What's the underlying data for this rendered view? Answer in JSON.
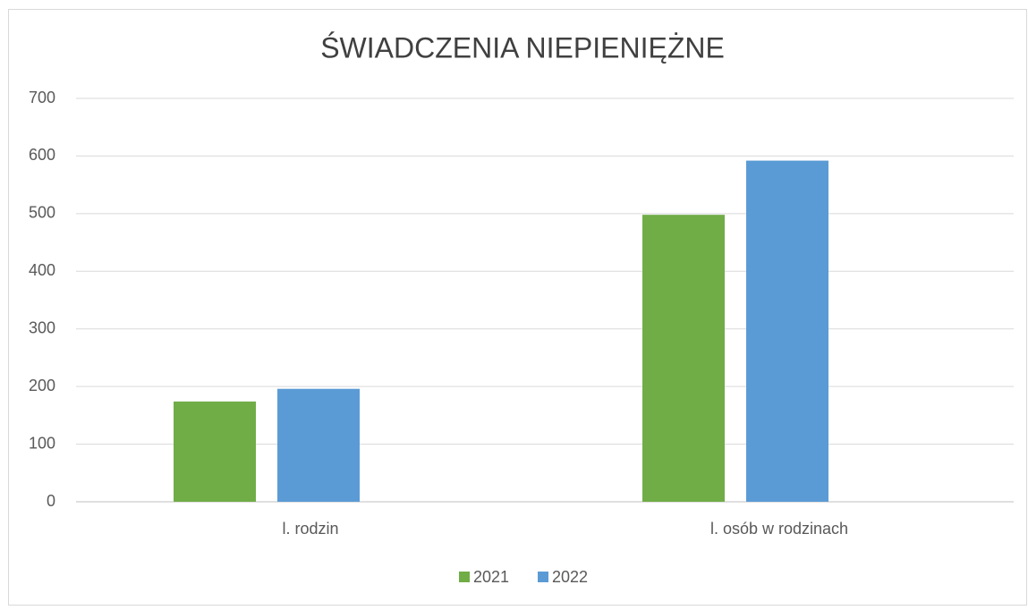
{
  "chart_data": {
    "type": "bar",
    "title": "ŚWIADCZENIA NIEPIENIĘŻNE",
    "categories": [
      "l. rodzin",
      "l. osób w rodzinach"
    ],
    "series": [
      {
        "name": "2021",
        "color": "#70ad47",
        "values": [
          174,
          498
        ]
      },
      {
        "name": "2022",
        "color": "#5b9bd5",
        "values": [
          196,
          592
        ]
      }
    ],
    "ylim": [
      0,
      700
    ],
    "yticks": [
      0,
      100,
      200,
      300,
      400,
      500,
      600,
      700
    ],
    "grid": true,
    "legend": "bottom"
  }
}
